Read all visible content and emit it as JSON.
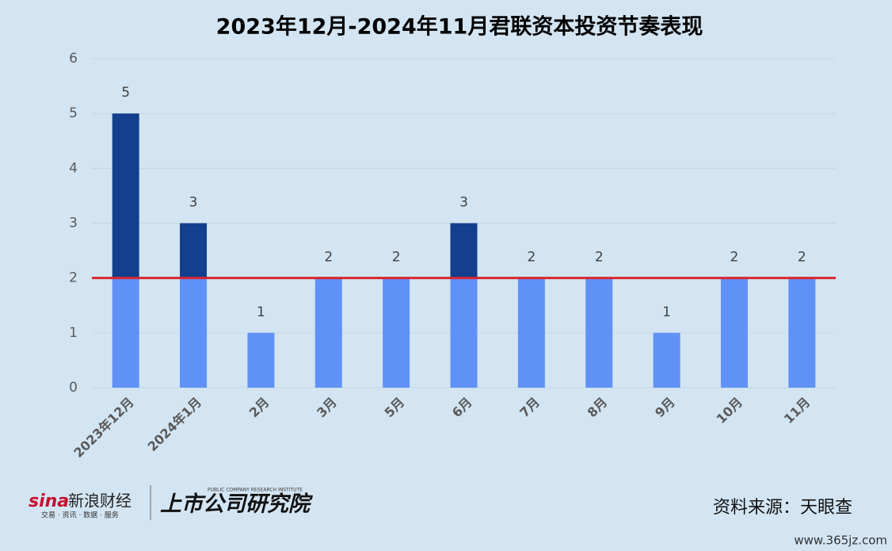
{
  "chart_data": {
    "type": "bar",
    "title": "2023年12月-2024年11月君联资本投资节奏表现",
    "categories": [
      "2023年12月",
      "2024年1月",
      "2月",
      "3月",
      "5月",
      "6月",
      "7月",
      "8月",
      "9月",
      "10月",
      "11月"
    ],
    "values": [
      5,
      3,
      1,
      2,
      2,
      3,
      2,
      2,
      1,
      2,
      2
    ],
    "color": "#6091f6",
    "above_threshold_color": "#133f8c",
    "threshold": 2,
    "threshold_color": "#d9272e",
    "ylim": [
      0,
      6
    ],
    "yticks": [
      0,
      1,
      2,
      3,
      4,
      5,
      6
    ],
    "grid": true
  },
  "footer": {
    "brand": "新浪财经",
    "brand_tagline": "交易 · 资讯 · 数据 · 服务",
    "institute": "上市公司研究院",
    "institute_en": "PUBLIC COMPANY RESEARCH INSTITUTE",
    "source": "资料来源：天眼查",
    "watermark": "www.365jz.com"
  }
}
